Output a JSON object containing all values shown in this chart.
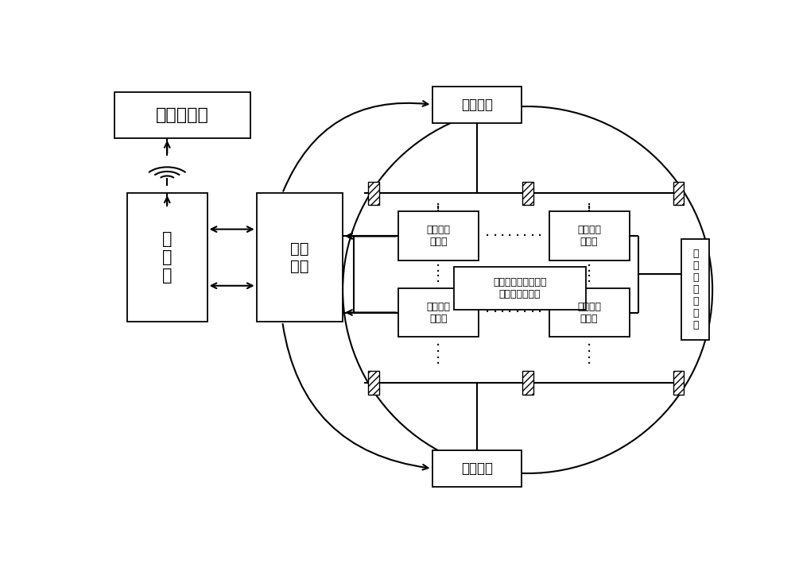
{
  "bg_color": "#ffffff",
  "line_color": "#000000",
  "text_color": "#000000",
  "main_cpu_label": "主处理单元",
  "ipc_label": "工\n控\n机",
  "monitor_label": "测控\n单元",
  "spray_top_label": "喷雾设备",
  "spray_bottom_label": "喷雾设备",
  "small_env_label": "小环境采\n集设备",
  "center_label": "温度，湿度，风速，\n太阳辐射，位置",
  "right_label": "混\n凝\n土\n浇\n筑\n仓\n面",
  "figsize": [
    10.0,
    7.19
  ],
  "dpi": 100,
  "xlim": [
    0,
    10
  ],
  "ylim": [
    0,
    7.19
  ]
}
